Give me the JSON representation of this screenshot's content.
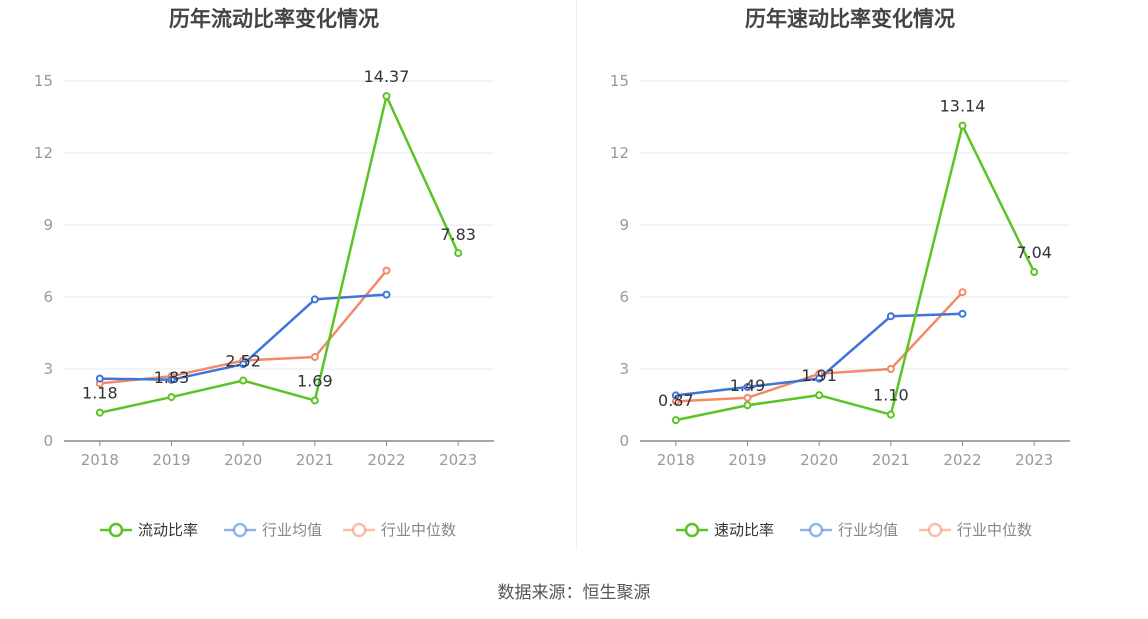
{
  "source_text": "数据来源：恒生聚源",
  "colors": {
    "current": "#5bc425",
    "avg": "#3f74d9",
    "median": "#f38a65",
    "axis": "#888888",
    "grid": "#e6e9f2",
    "title": "#444444",
    "label": "#333333",
    "tick": "#999999"
  },
  "chart_data": [
    {
      "type": "line",
      "title": "历年流动比率变化情况",
      "categories": [
        "2018",
        "2019",
        "2020",
        "2021",
        "2022",
        "2023"
      ],
      "ylim": [
        0,
        15
      ],
      "yticks": [
        0,
        3,
        6,
        9,
        12,
        15
      ],
      "grid": true,
      "legend_position": "bottom",
      "series": [
        {
          "name": "流动比率",
          "values": [
            1.18,
            1.83,
            2.52,
            1.69,
            14.37,
            7.83
          ],
          "labels": [
            "1.18",
            "1.83",
            "2.52",
            "1.69",
            "14.37",
            "7.83"
          ],
          "color": "#5bc425"
        },
        {
          "name": "行业均值",
          "values": [
            2.6,
            2.55,
            3.2,
            5.9,
            6.1,
            null
          ],
          "color": "#3f74d9"
        },
        {
          "name": "行业中位数",
          "values": [
            2.4,
            2.7,
            3.35,
            3.5,
            7.1,
            null
          ],
          "color": "#f38a65"
        }
      ]
    },
    {
      "type": "line",
      "title": "历年速动比率变化情况",
      "categories": [
        "2018",
        "2019",
        "2020",
        "2021",
        "2022",
        "2023"
      ],
      "ylim": [
        0,
        15
      ],
      "yticks": [
        0,
        3,
        6,
        9,
        12,
        15
      ],
      "grid": true,
      "legend_position": "bottom",
      "series": [
        {
          "name": "速动比率",
          "values": [
            0.87,
            1.49,
            1.91,
            1.1,
            13.14,
            7.04
          ],
          "labels": [
            "0.87",
            "1.49",
            "1.91",
            "1.10",
            "13.14",
            "7.04"
          ],
          "color": "#5bc425"
        },
        {
          "name": "行业均值",
          "values": [
            1.9,
            2.25,
            2.6,
            5.2,
            5.3,
            null
          ],
          "color": "#3f74d9"
        },
        {
          "name": "行业中位数",
          "values": [
            1.65,
            1.8,
            2.8,
            3.0,
            6.2,
            null
          ],
          "color": "#f38a65"
        }
      ]
    }
  ]
}
